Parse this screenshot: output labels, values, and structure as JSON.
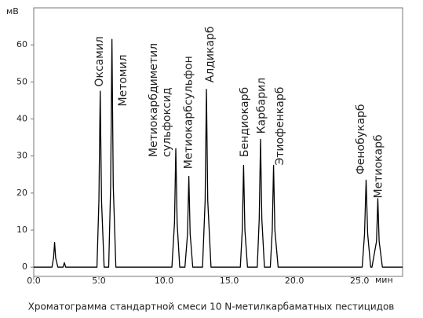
{
  "chart_data": {
    "type": "line",
    "title": "Хроматограмма стандартной смеси 10 N-метилкарбаматных пестицидов",
    "ylabel": "мВ",
    "xlabel": "мин",
    "color": "#000000",
    "x": [
      0,
      1.4,
      1.52,
      1.6,
      1.68,
      1.85,
      2.25,
      2.35,
      2.45,
      4.85,
      5.0,
      5.1,
      5.2,
      5.4,
      5.75,
      5.9,
      6.0,
      6.1,
      6.3,
      10.6,
      10.8,
      10.9,
      11.0,
      11.2,
      11.6,
      11.8,
      11.9,
      12.0,
      12.2,
      12.95,
      13.15,
      13.25,
      13.35,
      13.6,
      15.85,
      16.0,
      16.1,
      16.2,
      16.4,
      17.15,
      17.3,
      17.4,
      17.5,
      17.7,
      18.15,
      18.3,
      18.4,
      18.5,
      18.75,
      25.2,
      25.38,
      25.5,
      25.62,
      25.85,
      25.95,
      26.3,
      26.4,
      26.5,
      26.75,
      28.3
    ],
    "values": [
      0,
      0,
      2.5,
      6.7,
      2.5,
      0,
      0,
      1.2,
      0,
      0,
      18,
      47.5,
      18,
      0,
      0,
      22,
      61.5,
      22,
      0,
      0,
      12,
      32,
      12,
      0,
      0,
      9,
      24.5,
      9,
      0,
      0,
      18,
      48,
      18,
      0,
      0,
      10,
      27.5,
      10,
      0,
      0,
      13,
      34.5,
      13,
      0,
      0,
      10,
      27.5,
      10,
      0,
      0,
      9,
      23.5,
      9,
      0,
      0,
      7,
      18.5,
      7,
      0,
      0
    ],
    "xlim": [
      0,
      28.3
    ],
    "ylim": [
      -2.5,
      70
    ],
    "xticks": [
      {
        "value": 0,
        "label": "0.0"
      },
      {
        "value": 5,
        "label": "5.0"
      },
      {
        "value": 10,
        "label": "10.0"
      },
      {
        "value": 15,
        "label": "15.0"
      },
      {
        "value": 20,
        "label": "20.0"
      },
      {
        "value": 25,
        "label": "25.0"
      }
    ],
    "yticks": [
      0,
      10,
      20,
      30,
      40,
      50,
      60
    ],
    "annotations": [
      {
        "text": "Оксамил",
        "x": 5.05,
        "y": 48.7
      },
      {
        "text": "Метомил",
        "x": 6.87,
        "y": 43.4
      },
      {
        "text": "Метиокарбдиметил",
        "x": 9.2,
        "y": 29.7
      },
      {
        "text": "сульфоксид",
        "x": 10.25,
        "y": 29.7
      },
      {
        "text": "Метиокарбсульфон",
        "x": 11.9,
        "y": 26.5
      },
      {
        "text": "Алдикарб",
        "x": 13.55,
        "y": 49.8
      },
      {
        "text": "Бендиокарб",
        "x": 16.2,
        "y": 29.7
      },
      {
        "text": "Карбарил",
        "x": 17.5,
        "y": 36
      },
      {
        "text": "Этиофенкарб",
        "x": 18.9,
        "y": 27.5
      },
      {
        "text": "Фенобукарб",
        "x": 25.1,
        "y": 25
      },
      {
        "text": "Метиокарб",
        "x": 26.45,
        "y": 18.6
      }
    ]
  }
}
